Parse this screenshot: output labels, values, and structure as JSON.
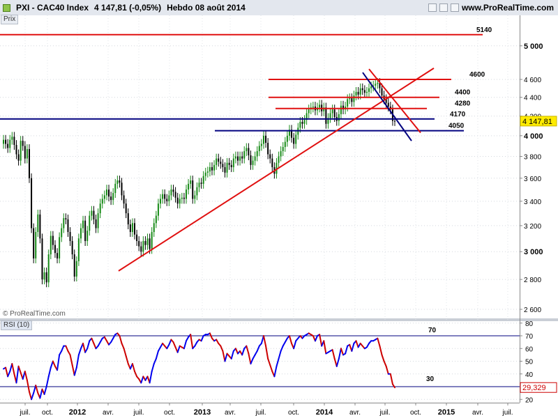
{
  "header": {
    "ticker": "PXI - CAC40 Index",
    "quote": "4 147,81 (-0,05%)",
    "period": "Hebdo  08 août 2014",
    "site": "www.ProRealTime.com"
  },
  "price_panel_label": "Prix",
  "rsi_panel_label": "RSI (10)",
  "credit": "© ProRealTime.com",
  "colors": {
    "up": "#168a16",
    "down": "#000000",
    "support_red": "#e01010",
    "trend_blue": "#00007f",
    "rsi_blue": "#0000ee",
    "rsi_red": "#cc0000"
  },
  "chart_data": [
    {
      "type": "candlestick",
      "ylim": [
        2550,
        5250
      ],
      "y_ticks": [
        2600,
        2800,
        3000,
        3200,
        3400,
        3600,
        3800,
        4000,
        4200,
        4400,
        4600,
        5000
      ],
      "y_tick_labels": [
        "2 600",
        "2 800",
        "3 000",
        "3 200",
        "3 400",
        "3 600",
        "3 800",
        "4 000",
        "4 200",
        "4 400",
        "4 600",
        "5 000"
      ],
      "x_labels": [
        "juil.",
        "oct.",
        "2012",
        "avr.",
        "juil.",
        "oct.",
        "2013",
        "avr.",
        "juil.",
        "oct.",
        "2014",
        "avr.",
        "juil.",
        "oct.",
        "2015",
        "avr.",
        "juil."
      ],
      "last_value_label": "4 147,81",
      "last_value": 4147.81,
      "horizontal_levels": [
        {
          "label": "5140",
          "value": 5140,
          "color": "red"
        },
        {
          "label": "4600",
          "value": 4600,
          "color": "red"
        },
        {
          "label": "4400",
          "value": 4400,
          "color": "red"
        },
        {
          "label": "4280",
          "value": 4280,
          "color": "red"
        },
        {
          "label": "4170",
          "value": 4170,
          "color": "blue"
        },
        {
          "label": "4050",
          "value": 4050,
          "color": "blue"
        }
      ],
      "series_close": [
        3960,
        3920,
        3880,
        3960,
        3990,
        3910,
        3820,
        3760,
        3950,
        3900,
        3780,
        3870,
        3600,
        3180,
        2950,
        3150,
        3290,
        3100,
        2800,
        2850,
        2780,
        2980,
        3120,
        3050,
        2990,
        2950,
        3110,
        3180,
        3260,
        3250,
        3150,
        3080,
        2980,
        2820,
        2930,
        3100,
        3180,
        3240,
        3080,
        3160,
        3280,
        3320,
        3250,
        3180,
        3300,
        3380,
        3420,
        3450,
        3500,
        3440,
        3410,
        3470,
        3550,
        3580,
        3560,
        3450,
        3380,
        3300,
        3210,
        3150,
        3220,
        3130,
        3080,
        3040,
        3000,
        3080,
        3050,
        3100,
        3020,
        3150,
        3220,
        3280,
        3380,
        3420,
        3460,
        3420,
        3400,
        3450,
        3500,
        3480,
        3430,
        3380,
        3420,
        3430,
        3420,
        3500,
        3550,
        3580,
        3420,
        3450,
        3520,
        3560,
        3550,
        3620,
        3650,
        3660,
        3700,
        3670,
        3720,
        3780,
        3750,
        3730,
        3700,
        3650,
        3740,
        3720,
        3700,
        3780,
        3800,
        3760,
        3800,
        3780,
        3850,
        3880,
        3810,
        3720,
        3760,
        3800,
        3850,
        3900,
        3920,
        4000,
        3930,
        3820,
        3780,
        3700,
        3640,
        3740,
        3800,
        3850,
        3890,
        3940,
        4000,
        4060,
        3980,
        3920,
        4010,
        4080,
        4140,
        4120,
        4160,
        4230,
        4270,
        4290,
        4300,
        4260,
        4290,
        4320,
        4250,
        4290,
        4120,
        4180,
        4230,
        4270,
        4190,
        4150,
        4220,
        4310,
        4270,
        4300,
        4380,
        4390,
        4350,
        4420,
        4460,
        4430,
        4500,
        4480,
        4450,
        4460,
        4500,
        4520,
        4530,
        4550,
        4560,
        4500,
        4420,
        4380,
        4340,
        4300,
        4270,
        4150,
        4147.81
      ]
    },
    {
      "type": "line",
      "name": "RSI (10)",
      "ylim": [
        15,
        85
      ],
      "y_ticks": [
        20,
        30,
        40,
        50,
        60,
        70,
        80
      ],
      "y_tick_labels": [
        "20",
        "30",
        "40",
        "50",
        "60",
        "70",
        "80"
      ],
      "levels": [
        {
          "label": "70",
          "value": 70
        },
        {
          "label": "30",
          "value": 30
        }
      ],
      "last_value_label": "29,329",
      "last_value": 29.329,
      "values": [
        44,
        45,
        38,
        42,
        48,
        40,
        33,
        46,
        41,
        36,
        42,
        35,
        26,
        20,
        25,
        31,
        25,
        21,
        28,
        24,
        30,
        38,
        45,
        50,
        46,
        43,
        55,
        58,
        62,
        62,
        58,
        55,
        47,
        39,
        45,
        55,
        60,
        64,
        57,
        60,
        66,
        68,
        64,
        60,
        62,
        65,
        68,
        69,
        66,
        63,
        65,
        68,
        71,
        72,
        70,
        64,
        60,
        54,
        48,
        44,
        48,
        42,
        38,
        36,
        33,
        38,
        35,
        38,
        33,
        42,
        48,
        52,
        58,
        61,
        64,
        62,
        60,
        63,
        67,
        65,
        61,
        57,
        62,
        61,
        60,
        66,
        69,
        71,
        60,
        62,
        65,
        67,
        66,
        70,
        71,
        71,
        72,
        68,
        66,
        67,
        64,
        62,
        58,
        50,
        56,
        54,
        52,
        58,
        60,
        56,
        58,
        55,
        60,
        62,
        56,
        48,
        52,
        55,
        58,
        62,
        64,
        70,
        62,
        52,
        47,
        42,
        38,
        46,
        52,
        58,
        62,
        65,
        68,
        70,
        64,
        60,
        66,
        68,
        70,
        68,
        70,
        71,
        72,
        71,
        70,
        66,
        70,
        71,
        62,
        66,
        56,
        57,
        58,
        59,
        52,
        46,
        52,
        60,
        55,
        56,
        62,
        63,
        58,
        64,
        66,
        61,
        64,
        62,
        60,
        61,
        64,
        66,
        66,
        67,
        68,
        62,
        55,
        50,
        46,
        40,
        40,
        32,
        29.329
      ]
    }
  ]
}
